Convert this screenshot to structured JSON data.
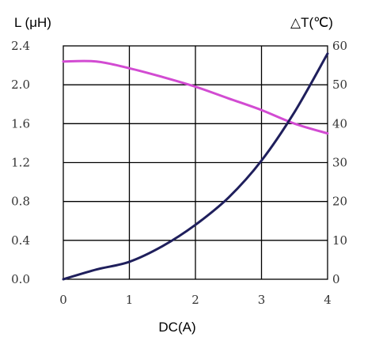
{
  "chart_data": {
    "type": "line",
    "title": "",
    "xlabel": "DC(A)",
    "ylabel_left": "L (μH)",
    "ylabel_right": "△T(℃)",
    "xlim": [
      0,
      4
    ],
    "ylim_left": [
      0,
      2.4
    ],
    "ylim_right": [
      0,
      60
    ],
    "x_ticks": [
      "0",
      "1",
      "2",
      "3",
      "4"
    ],
    "y_left_ticks": [
      "0.0",
      "0.4",
      "0.8",
      "1.2",
      "1.6",
      "2.0",
      "2.4"
    ],
    "y_right_ticks": [
      "0",
      "10",
      "20",
      "30",
      "40",
      "50",
      "60"
    ],
    "grid": true,
    "series": [
      {
        "axis": "left",
        "color": "#d24bd2",
        "x": [
          0,
          0.5,
          1.0,
          1.5,
          2.0,
          2.5,
          3.0,
          3.5,
          4.0
        ],
        "y": [
          2.24,
          2.24,
          2.17,
          2.08,
          1.98,
          1.86,
          1.74,
          1.6,
          1.5
        ]
      },
      {
        "axis": "right",
        "color": "#1f1f5c",
        "x": [
          0,
          0.5,
          1.0,
          1.5,
          2.0,
          2.5,
          3.0,
          3.5,
          4.0
        ],
        "y": [
          0,
          2.5,
          4.5,
          8.5,
          14,
          21,
          30.5,
          43,
          58
        ]
      }
    ]
  }
}
